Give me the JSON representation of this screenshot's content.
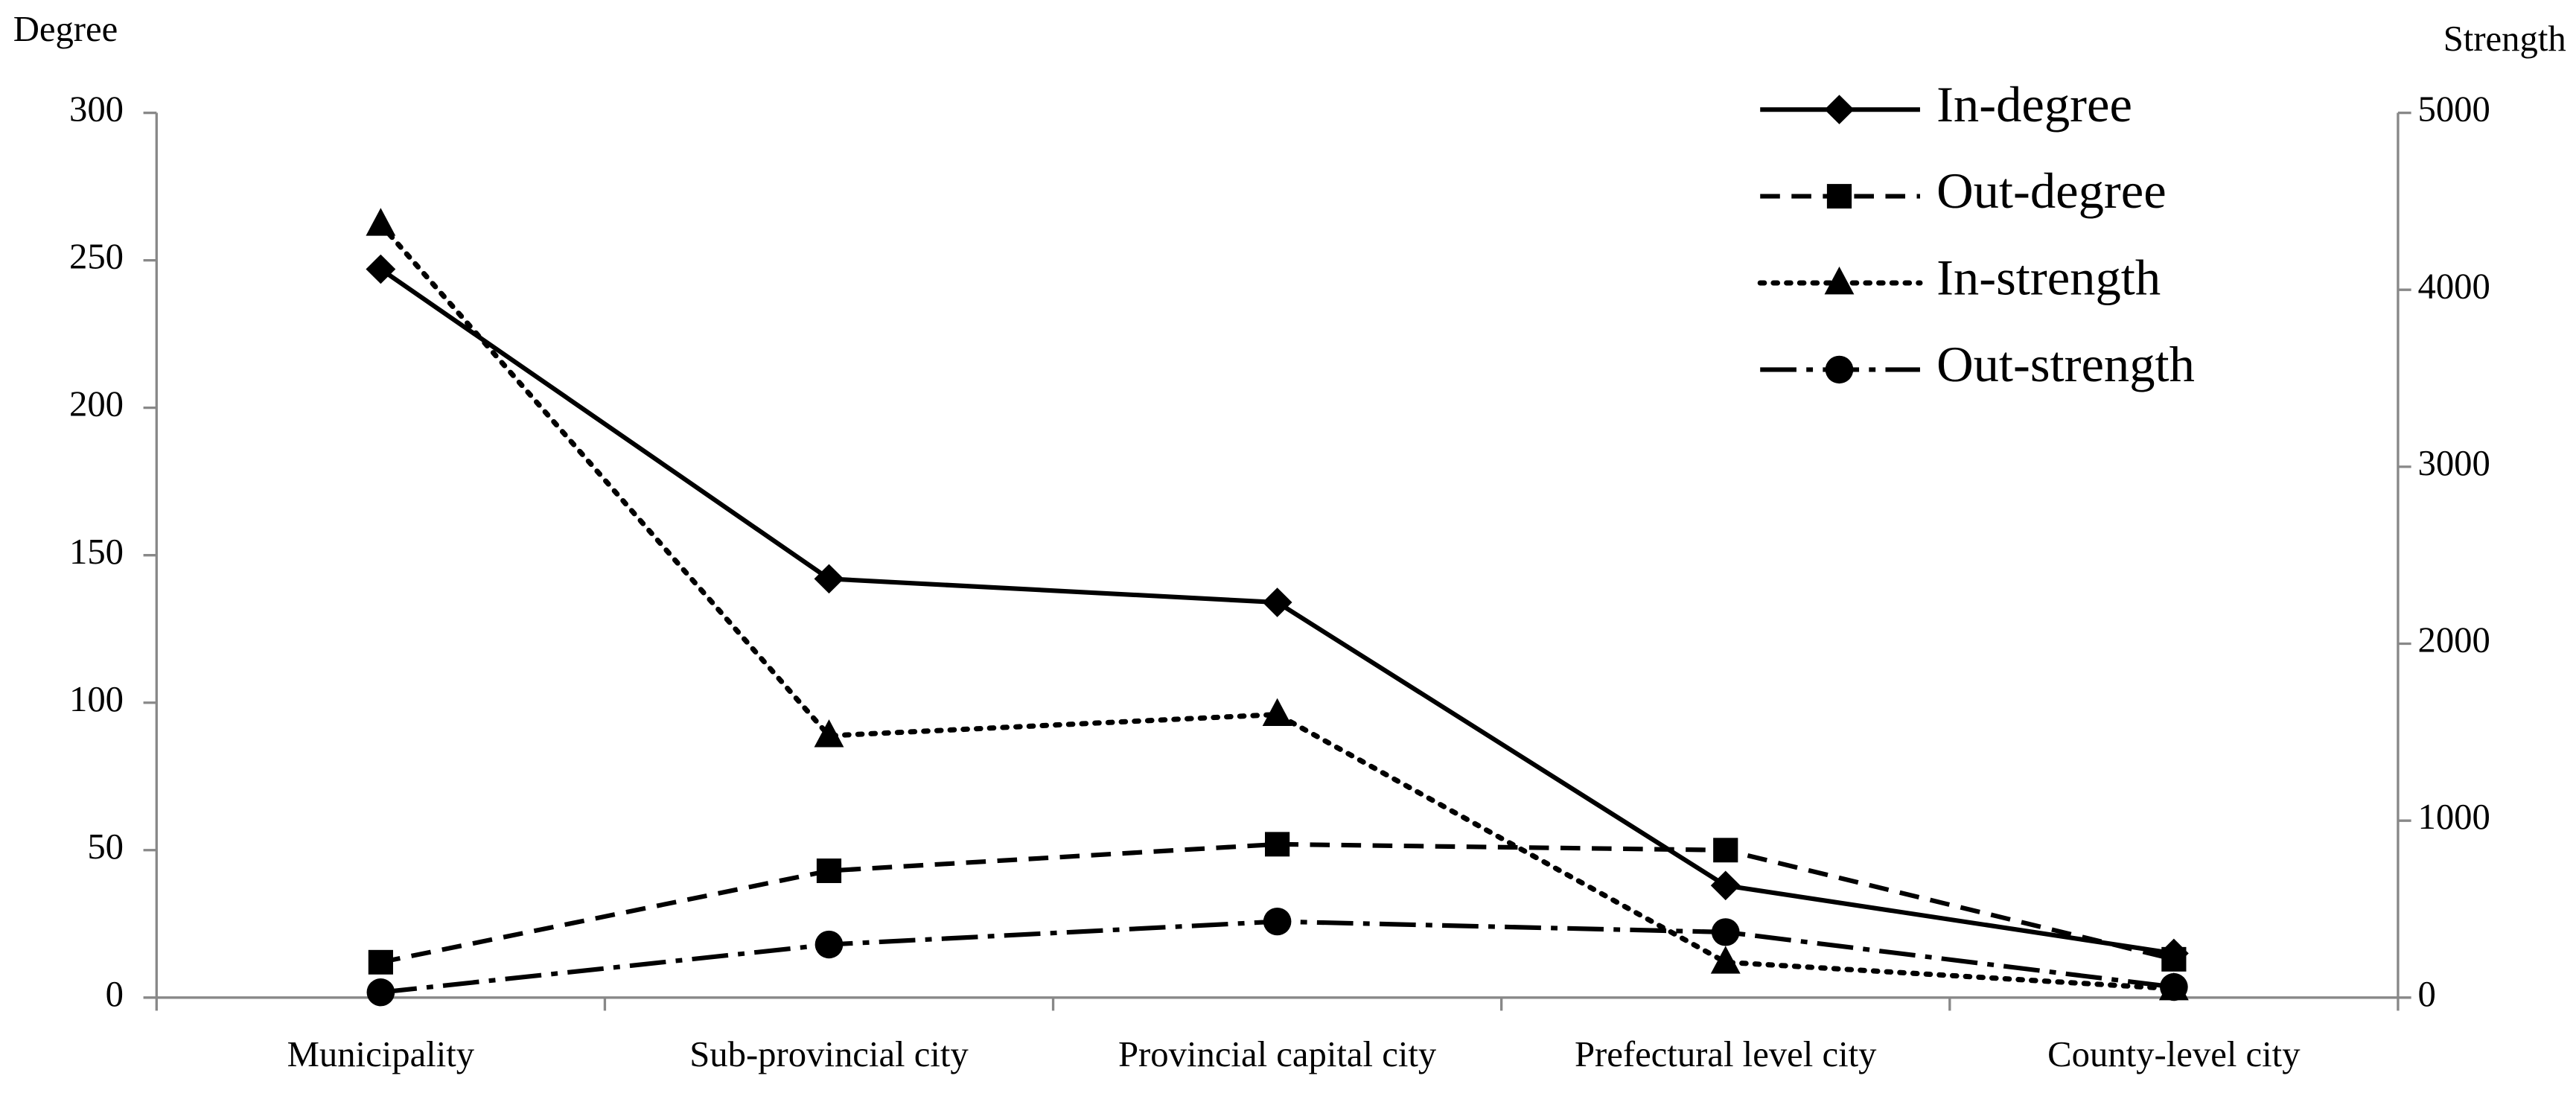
{
  "chart_data": {
    "type": "line",
    "y_label": "Degree",
    "y2_label": "Strength",
    "categories": [
      "Municipality",
      "Sub-provincial city",
      "Provincial capital city",
      "Prefectural level city",
      "County-level city"
    ],
    "ylim": [
      0,
      300
    ],
    "yticks": [
      0,
      50,
      100,
      150,
      200,
      250,
      300
    ],
    "y2lim": [
      0,
      5000
    ],
    "y2ticks": [
      0,
      1000,
      2000,
      3000,
      4000,
      5000
    ],
    "legend": "upper right",
    "series": [
      {
        "name": "In-degree",
        "color": "#000000",
        "dash": "solid",
        "marker": "diamond",
        "values": [
          247,
          142,
          134,
          38,
          15
        ]
      },
      {
        "name": "Out-degree",
        "color": "#000000",
        "dash": "dashed",
        "marker": "square",
        "values": [
          12,
          43,
          52,
          50,
          13
        ]
      },
      {
        "name": "In-strength",
        "color": "#000000",
        "dash": "dotted",
        "marker": "triangle",
        "axis": "y2",
        "values": [
          4370,
          1480,
          1600,
          200,
          50
        ]
      },
      {
        "name": "Out-strength",
        "color": "#000000",
        "dash": "dashdot",
        "marker": "circle",
        "axis": "y2",
        "values": [
          30,
          300,
          430,
          370,
          60
        ]
      }
    ]
  }
}
